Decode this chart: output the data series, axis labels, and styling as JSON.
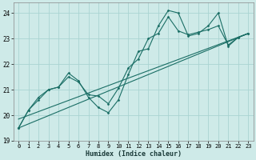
{
  "xlabel": "Humidex (Indice chaleur)",
  "ylabel": "",
  "bg_color": "#ceeae8",
  "grid_color": "#aad4d2",
  "line_color": "#1a6e65",
  "xlim": [
    -0.5,
    23.5
  ],
  "ylim": [
    19.0,
    24.4
  ],
  "yticks": [
    19,
    20,
    21,
    22,
    23,
    24
  ],
  "xticks": [
    0,
    1,
    2,
    3,
    4,
    5,
    6,
    7,
    8,
    9,
    10,
    11,
    12,
    13,
    14,
    15,
    16,
    17,
    18,
    19,
    20,
    21,
    22,
    23
  ],
  "series1_x": [
    0,
    1,
    2,
    3,
    4,
    5,
    6,
    7,
    8,
    9,
    10,
    11,
    12,
    13,
    14,
    15,
    16,
    17,
    18,
    19,
    20,
    21,
    22,
    23
  ],
  "series1_y": [
    19.5,
    20.2,
    20.7,
    21.0,
    21.1,
    21.65,
    21.35,
    20.7,
    20.3,
    20.1,
    20.6,
    21.6,
    22.5,
    22.6,
    23.5,
    24.1,
    24.0,
    23.1,
    23.2,
    23.5,
    24.0,
    22.7,
    23.05,
    23.2
  ],
  "series2_x": [
    0,
    1,
    2,
    3,
    4,
    5,
    6,
    7,
    8,
    9,
    10,
    11,
    12,
    13,
    14,
    15,
    16,
    17,
    18,
    19,
    20,
    21,
    22,
    23
  ],
  "series2_y": [
    19.5,
    20.2,
    20.6,
    21.0,
    21.1,
    21.5,
    21.3,
    20.8,
    20.75,
    20.45,
    21.05,
    21.85,
    22.2,
    23.0,
    23.2,
    23.85,
    23.3,
    23.15,
    23.25,
    23.35,
    23.5,
    22.75,
    23.05,
    23.2
  ],
  "trend1_x": [
    0,
    23
  ],
  "trend1_y": [
    19.5,
    23.2
  ],
  "trend2_x": [
    0,
    23
  ],
  "trend2_y": [
    19.85,
    23.2
  ]
}
